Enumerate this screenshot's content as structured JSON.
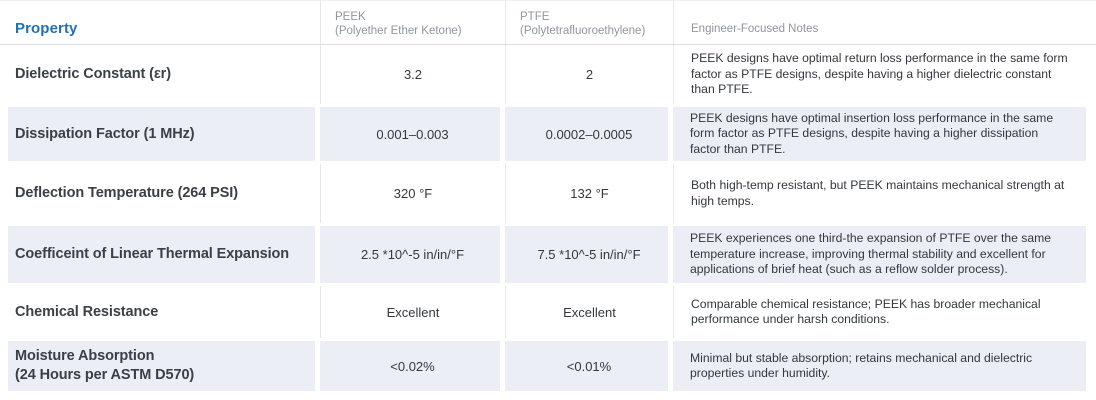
{
  "table": {
    "headers": {
      "property": "Property",
      "peek_title": "PEEK",
      "peek_subtitle": "(Polyether Ether Ketone)",
      "ptfe_title": "PTFE",
      "ptfe_subtitle": "(Polytetrafluoroethylene)",
      "notes": "Engineer-Focused Notes"
    },
    "rows": [
      {
        "property": "Dielectric Constant (εr)",
        "peek": "3.2",
        "ptfe": "2",
        "notes": "PEEK designs have optimal return loss performance in the same form factor as PTFE designs, despite having a higher dielectric constant than PTFE."
      },
      {
        "property": "Dissipation Factor (1 MHz)",
        "peek": "0.001–0.003",
        "ptfe": "0.0002–0.0005",
        "notes": "PEEK designs have optimal insertion loss performance in the same form factor as PTFE designs, despite having a higher dissipation factor than PTFE."
      },
      {
        "property": "Deflection Temperature (264 PSI)",
        "peek": "320 °F",
        "ptfe": "132 °F",
        "notes": "Both high-temp resistant, but PEEK maintains mechanical strength at high temps."
      },
      {
        "property": "Coefficeint of Linear Thermal Expansion",
        "peek": "2.5 *10^-5 in/in/°F",
        "ptfe": "7.5 *10^-5 in/in/°F",
        "notes": "PEEK experiences one third-the expansion of PTFE over the same temperature increase, improving thermal stability and excellent for applications of brief heat (such as a reflow solder process)."
      },
      {
        "property": "Chemical Resistance",
        "peek": "Excellent",
        "ptfe": "Excellent",
        "notes": "Comparable chemical resistance; PEEK has broader mechanical performance under harsh conditions."
      },
      {
        "property_line1": "Moisture Absorption",
        "property_line2": "(24 Hours per ASTM D570)",
        "peek": "<0.02%",
        "ptfe": "<0.01%",
        "notes": "Minimal but stable absorption; retains mechanical and dielectric properties under humidity."
      }
    ],
    "colors": {
      "accent_blue": "#2471ae",
      "row_shade": "#ebeef4",
      "header_gray": "#8f969e"
    }
  }
}
